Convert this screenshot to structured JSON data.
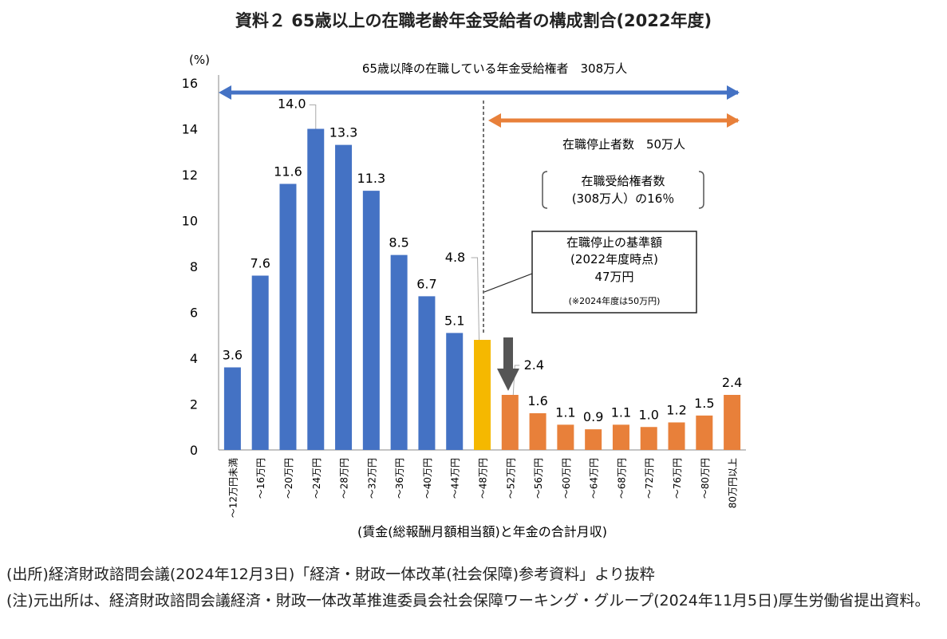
{
  "title": "資料２ 65歳以上の在職老齢年金受給者の構成割合(2022年度)",
  "chart_data": {
    "type": "bar",
    "ylabel": "(%)",
    "xlabel": "(賃金(総報酬月額相当額)と年金の合計月収)",
    "ylim": [
      0,
      16
    ],
    "yticks": [
      0,
      2,
      4,
      6,
      8,
      10,
      12,
      14,
      16
    ],
    "grid": false,
    "categories": [
      "～12万円未満",
      "～16万円",
      "～20万円",
      "～24万円",
      "～28万円",
      "～32万円",
      "～36万円",
      "～40万円",
      "～44万円",
      "～48万円",
      "～52万円",
      "～56万円",
      "～60万円",
      "～64万円",
      "～68万円",
      "～72万円",
      "～76万円",
      "～80万円",
      "80万円以上"
    ],
    "values": [
      3.6,
      7.6,
      11.6,
      14.0,
      13.3,
      11.3,
      8.5,
      6.7,
      5.1,
      4.8,
      2.4,
      1.6,
      1.1,
      0.9,
      1.1,
      1.0,
      1.2,
      1.5,
      2.4
    ],
    "data_labels": [
      "3.6",
      "7.6",
      "11.6",
      "14.0",
      "13.3",
      "11.3",
      "8.5",
      "6.7",
      "5.1",
      "4.8",
      "2.4",
      "1.6",
      "1.1",
      "0.9",
      "1.1",
      "1.0",
      "1.2",
      "1.5",
      "2.4"
    ],
    "bar_colors": [
      "#4472C4",
      "#4472C4",
      "#4472C4",
      "#4472C4",
      "#4472C4",
      "#4472C4",
      "#4472C4",
      "#4472C4",
      "#4472C4",
      "#F5B800",
      "#E8803A",
      "#E8803A",
      "#E8803A",
      "#E8803A",
      "#E8803A",
      "#E8803A",
      "#E8803A",
      "#E8803A",
      "#E8803A"
    ],
    "annotations": {
      "all_range": "65歳以降の在職している年金受給権者　308万人",
      "stopped_range": "在職停止者数　50万人",
      "share_line1": "在職受給権者数",
      "share_line2": "(308万人）の16％",
      "box_line1": "在職停止の基準額",
      "box_line2": "(2022年度時点)",
      "box_line3": "47万円",
      "box_line4": "(※2024年度は50万円)"
    },
    "colors": {
      "blue_arrow": "#4472C4",
      "orange_arrow": "#E8803A",
      "down_arrow": "#555555"
    }
  },
  "notes": [
    "(出所)経済財政諮問会議(2024年12月3日)「経済・財政一体改革(社会保障)参考資料」より抜粋",
    "(注)元出所は、経済財政諮問会議経済・財政一体改革推進委員会社会保障ワーキング・グループ(2024年11月5日)厚生労働省提出資料。"
  ]
}
